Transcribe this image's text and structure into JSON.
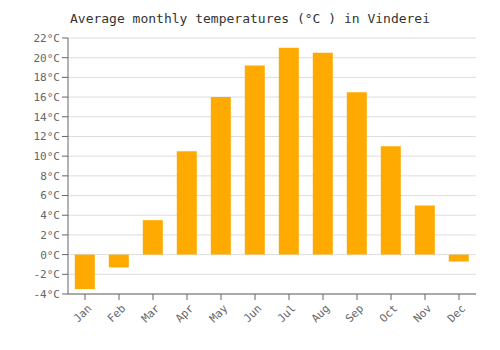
{
  "chart_data": {
    "type": "bar",
    "title": "Average monthly temperatures (°C ) in Vinderei",
    "categories": [
      "Jan",
      "Feb",
      "Mar",
      "Apr",
      "May",
      "Jun",
      "Jul",
      "Aug",
      "Sep",
      "Oct",
      "Nov",
      "Dec"
    ],
    "values": [
      -3.5,
      -1.3,
      3.5,
      10.5,
      16.0,
      19.2,
      21.0,
      20.5,
      16.5,
      11.0,
      5.0,
      -0.7
    ],
    "color": "#FFAA00",
    "ylim": [
      -4,
      22
    ],
    "yticks": [
      {
        "value": -4,
        "label": "-4°C"
      },
      {
        "value": -2,
        "label": "-2°C"
      },
      {
        "value": 0,
        "label": "0°C"
      },
      {
        "value": 2,
        "label": "2°C"
      },
      {
        "value": 4,
        "label": "4°C"
      },
      {
        "value": 6,
        "label": "6°C"
      },
      {
        "value": 8,
        "label": "8°C"
      },
      {
        "value": 10,
        "label": "10°C"
      },
      {
        "value": 12,
        "label": "12°C"
      },
      {
        "value": 14,
        "label": "14°C"
      },
      {
        "value": 16,
        "label": "16°C"
      },
      {
        "value": 18,
        "label": "18°C"
      },
      {
        "value": 20,
        "label": "20°C"
      },
      {
        "value": 22,
        "label": "22°C"
      }
    ],
    "grid": true
  }
}
